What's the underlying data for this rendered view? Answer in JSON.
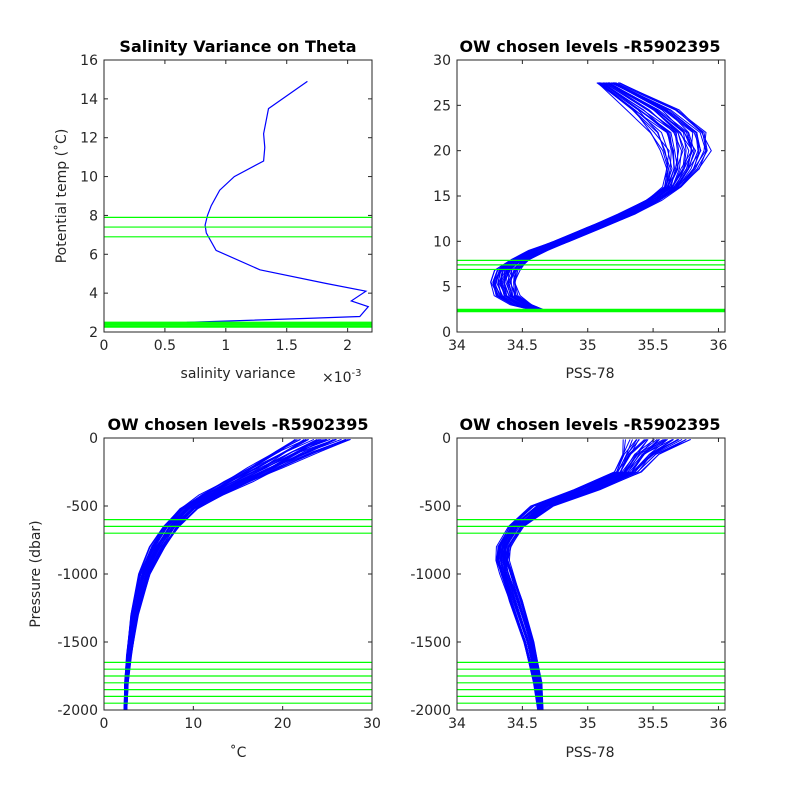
{
  "chart_data": [
    {
      "type": "line",
      "title": "Salinity Variance on Theta",
      "xlabel": "salinity variance",
      "x_exponent_label": "×10",
      "x_exponent_power": "-3",
      "ylabel": "Potential temp (˚C)",
      "xlim": [
        0,
        2.2
      ],
      "ylim": [
        2,
        16
      ],
      "xticks": [
        0,
        0.5,
        1,
        1.5,
        2
      ],
      "xtick_labels": [
        "0",
        "0.5",
        "1",
        "1.5",
        "2"
      ],
      "yticks": [
        2,
        4,
        6,
        8,
        10,
        12,
        14,
        16
      ],
      "ytick_labels": [
        "2",
        "4",
        "6",
        "8",
        "10",
        "12",
        "14",
        "16"
      ],
      "series": [
        {
          "color": "#0000ff",
          "x": [
            1.67,
            1.35,
            1.31,
            1.32,
            1.31,
            1.07,
            0.95,
            0.88,
            0.85,
            0.83,
            0.84,
            0.92,
            1.28,
            1.82,
            2.15,
            2.03,
            2.17,
            2.1,
            1.67,
            0.68
          ],
          "y": [
            14.9,
            13.5,
            12.2,
            11.5,
            10.8,
            10.0,
            9.3,
            8.5,
            8.0,
            7.5,
            7.1,
            6.2,
            5.2,
            4.5,
            4.1,
            3.6,
            3.3,
            2.8,
            2.7,
            2.5
          ]
        }
      ],
      "hlines": {
        "color": "#00ff00",
        "y": [
          7.9,
          7.4,
          6.9,
          2.5,
          2.45,
          2.4,
          2.35,
          2.3,
          2.25
        ]
      }
    },
    {
      "type": "line",
      "title": "OW chosen levels -R5902395",
      "xlabel": "PSS-78",
      "ylabel": "",
      "xlim": [
        34,
        36.05
      ],
      "ylim": [
        0,
        30
      ],
      "xticks": [
        34,
        34.5,
        35,
        35.5,
        36
      ],
      "xtick_labels": [
        "34",
        "34.5",
        "35",
        "35.5",
        "36"
      ],
      "yticks": [
        0,
        5,
        10,
        15,
        20,
        25,
        30
      ],
      "ytick_labels": [
        "0",
        "5",
        "10",
        "15",
        "20",
        "25",
        "30"
      ],
      "band": {
        "color": "#0000ff",
        "center": {
          "x": [
            34.65,
            34.5,
            34.38,
            34.35,
            34.38,
            34.48,
            34.62,
            34.8,
            35.05,
            35.3,
            35.5,
            35.65,
            35.72,
            35.75,
            35.7,
            35.5,
            35.15
          ],
          "y": [
            2.3,
            3.0,
            4.0,
            5.5,
            6.8,
            8.0,
            9.0,
            10.0,
            11.5,
            13.0,
            14.5,
            16.0,
            18.0,
            20.0,
            22.0,
            24.5,
            27.5
          ]
        },
        "spread": [
          0.04,
          0.08,
          0.09,
          0.09,
          0.09,
          0.07,
          0.07,
          0.06,
          0.06,
          0.06,
          0.06,
          0.07,
          0.12,
          0.18,
          0.2,
          0.18,
          0.08
        ],
        "curves": 34
      },
      "hlines": {
        "color": "#00ff00",
        "y": [
          7.9,
          7.4,
          6.9,
          2.5,
          2.45,
          2.4,
          2.35,
          2.3,
          2.25
        ]
      }
    },
    {
      "type": "line",
      "title": "OW chosen levels -R5902395",
      "xlabel": "˚C",
      "ylabel": "Pressure (dbar)",
      "xlim": [
        0,
        30
      ],
      "ylim": [
        -2000,
        0
      ],
      "xticks": [
        0,
        10,
        20,
        30
      ],
      "xtick_labels": [
        "0",
        "10",
        "20",
        "30"
      ],
      "yticks": [
        -2000,
        -1500,
        -1000,
        -500,
        0
      ],
      "ytick_labels": [
        "-2000",
        "-1500",
        "-1000",
        "-500",
        "0"
      ],
      "band": {
        "color": "#0000ff",
        "center": {
          "x": [
            2.4,
            2.5,
            2.8,
            3.4,
            4.5,
            6.0,
            7.5,
            9.5,
            12.0,
            15.0,
            18.0,
            21.5,
            24.5
          ],
          "y": [
            -2000,
            -1800,
            -1600,
            -1300,
            -1000,
            -800,
            -650,
            -520,
            -420,
            -320,
            -220,
            -100,
            -10
          ]
        },
        "spread": [
          0.15,
          0.2,
          0.25,
          0.4,
          0.6,
          0.8,
          0.9,
          1.0,
          1.2,
          1.5,
          1.8,
          2.5,
          3.0
        ],
        "curves": 34
      },
      "hlines": {
        "color": "#00ff00",
        "y": [
          -600,
          -650,
          -700,
          -1650,
          -1700,
          -1750,
          -1800,
          -1850,
          -1900,
          -1950
        ]
      }
    },
    {
      "type": "line",
      "title": "OW chosen levels -R5902395",
      "xlabel": "PSS-78",
      "ylabel": "",
      "xlim": [
        34,
        36.05
      ],
      "ylim": [
        -2000,
        0
      ],
      "xticks": [
        34,
        34.5,
        35,
        35.5,
        36
      ],
      "xtick_labels": [
        "34",
        "34.5",
        "35",
        "35.5",
        "36"
      ],
      "yticks": [
        -2000,
        -1500,
        -1000,
        -500,
        0
      ],
      "ytick_labels": [
        "-2000",
        "-1500",
        "-1000",
        "-500",
        "0"
      ],
      "band": {
        "color": "#0000ff",
        "center": {
          "x": [
            34.64,
            34.62,
            34.55,
            34.45,
            34.38,
            34.35,
            34.36,
            34.45,
            34.65,
            35.0,
            35.3,
            35.4,
            35.55
          ],
          "y": [
            -2000,
            -1800,
            -1500,
            -1200,
            -1000,
            -900,
            -800,
            -650,
            -500,
            -380,
            -250,
            -120,
            -10
          ]
        },
        "spread": [
          0.02,
          0.03,
          0.04,
          0.05,
          0.05,
          0.05,
          0.05,
          0.06,
          0.08,
          0.1,
          0.1,
          0.15,
          0.25
        ],
        "curves": 34
      },
      "hlines": {
        "color": "#00ff00",
        "y": [
          -600,
          -650,
          -700,
          -1650,
          -1700,
          -1750,
          -1800,
          -1850,
          -1900,
          -1950
        ]
      }
    }
  ]
}
